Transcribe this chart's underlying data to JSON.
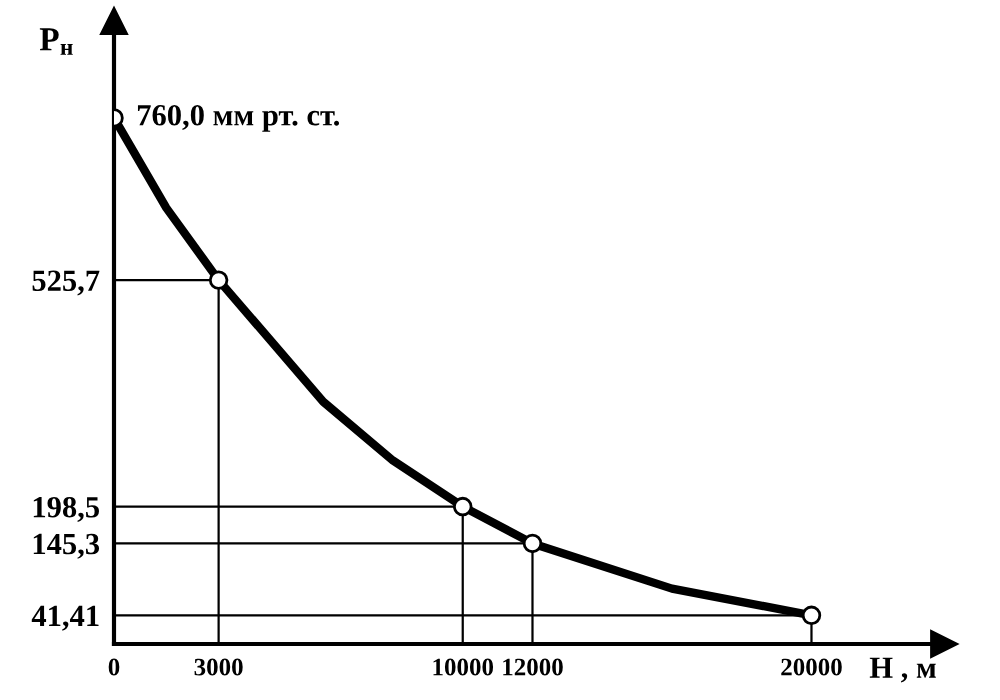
{
  "chart_data": {
    "type": "line",
    "xlabel": "H , м",
    "ylabel": "P$_{н}$",
    "x": [
      0,
      3000,
      10000,
      12000,
      20000
    ],
    "series": [
      {
        "color": "#000000",
        "x": [
          0,
          1500,
          3000,
          6000,
          8000,
          10000,
          12000,
          16000,
          20000
        ],
        "values": [
          760,
          630,
          525.7,
          350,
          265,
          198.5,
          145.3,
          80,
          41.41
        ]
      },
      {
        "type": "step",
        "color": "#000000",
        "x": [
          0,
          3000
        ],
        "values": [
          525.7,
          0
        ]
      },
      {
        "type": "step",
        "color": "#000000",
        "x": [
          0,
          10000
        ],
        "values": [
          198.5,
          0
        ]
      },
      {
        "type": "step",
        "color": "#000000",
        "x": [
          0,
          12000
        ],
        "values": [
          145.3,
          0
        ]
      },
      {
        "type": "step",
        "color": "#000000",
        "x": [
          0,
          20000
        ],
        "values": [
          41.41,
          0
        ]
      },
      {
        "type": "scatter",
        "color": "#000000",
        "marker": "circle",
        "values": [
          760.0,
          525.7,
          198.5,
          145.3,
          41.41
        ]
      }
    ],
    "line_style": "solid",
    "grid": false,
    "legend": false,
    "annotations": [
      {
        "text": "760,0 мм рт. ст.",
        "x": 0,
        "y": 760.0
      }
    ],
    "xlim": [
      0,
      23800
    ],
    "ylim": [
      0,
      900
    ],
    "xticks": [
      0,
      3000,
      10000,
      12000,
      20000
    ],
    "yticks": [
      {
        "value": 41.41,
        "label": "41,41"
      },
      {
        "value": 145.3,
        "label": "145,3"
      },
      {
        "value": 198.5,
        "label": "198,5"
      },
      {
        "value": 525.7,
        "label": "525,7"
      }
    ]
  }
}
